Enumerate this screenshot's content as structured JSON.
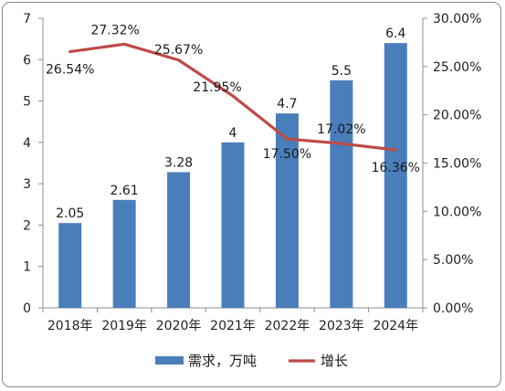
{
  "chart_data": {
    "type": "bar",
    "categories": [
      "2018年",
      "2019年",
      "2020年",
      "2021年",
      "2022年",
      "2023年",
      "2024年"
    ],
    "series": [
      {
        "name": "需求，万吨",
        "chart_type": "bar",
        "axis": "left",
        "color": "#4a7ebb",
        "values": [
          2.05,
          2.61,
          3.28,
          4,
          4.7,
          5.5,
          6.4
        ],
        "labels": [
          "2.05",
          "2.61",
          "3.28",
          "4",
          "4.7",
          "5.5",
          "6.4"
        ]
      },
      {
        "name": "增长",
        "chart_type": "line",
        "axis": "right",
        "color": "#be4b48",
        "values": [
          26.54,
          27.32,
          25.67,
          21.95,
          17.5,
          17.02,
          16.36
        ],
        "labels": [
          "26.54%",
          "27.32%",
          "25.67%",
          "21.95%",
          "17.50%",
          "17.02%",
          "16.36%"
        ]
      }
    ],
    "y_left": {
      "ylim": [
        0,
        7
      ],
      "ticks": [
        0,
        1,
        2,
        3,
        4,
        5,
        6,
        7
      ],
      "tick_labels": [
        "0",
        "1",
        "2",
        "3",
        "4",
        "5",
        "6",
        "7"
      ]
    },
    "y_right": {
      "ylim": [
        0,
        30
      ],
      "ticks": [
        0,
        5,
        10,
        15,
        20,
        25,
        30
      ],
      "tick_labels": [
        "0.00%",
        "5.00%",
        "10.00%",
        "15.00%",
        "20.00%",
        "25.00%",
        "30.00%"
      ]
    },
    "title": "",
    "xlabel": "",
    "ylabel": "",
    "grid": false,
    "legend_position": "bottom"
  }
}
